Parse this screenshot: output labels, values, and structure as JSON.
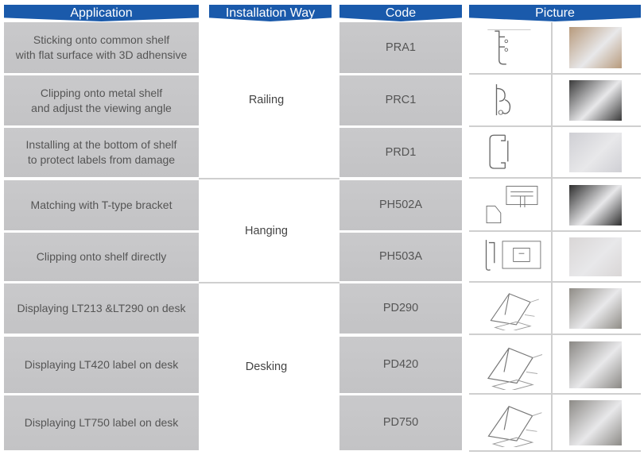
{
  "headers": {
    "application": "Application",
    "installation": "Installation Way",
    "code": "Code",
    "picture": "Picture"
  },
  "colors": {
    "header": "#1a5aab",
    "cell": "#c7c7c9"
  },
  "groups": [
    {
      "label": "Railing"
    },
    {
      "label": "Hanging"
    },
    {
      "label": "Desking"
    }
  ],
  "rows": [
    {
      "application": "Sticking onto common shelf\nwith flat surface with 3D adhensive",
      "code": "PRA1",
      "group": 0,
      "drawing": "rail-profile-drawing",
      "photo_tone": "#b79a7c"
    },
    {
      "application": "Clipping onto metal shelf\nand adjust the viewing angle",
      "code": "PRC1",
      "group": 0,
      "drawing": "clip-profile-drawing",
      "photo_tone": "#3a3a3a"
    },
    {
      "application": "Installing at the bottom of shelf\nto protect labels from damage",
      "code": "PRD1",
      "group": 0,
      "drawing": "bottom-rail-drawing",
      "photo_tone": "#cfcfd4"
    },
    {
      "application": "Matching with T-type bracket",
      "code": "PH502A",
      "group": 1,
      "drawing": "t-bracket-drawing",
      "photo_tone": "#2e2e2e"
    },
    {
      "application": "Clipping onto shelf directly",
      "code": "PH503A",
      "group": 1,
      "drawing": "shelf-clip-drawing",
      "photo_tone": "#d9d6d6"
    },
    {
      "application": "Displaying LT213 &LT290 on desk",
      "code": "PD290",
      "group": 2,
      "drawing": "desk-stand-drawing",
      "photo_tone": "#8f8c86"
    },
    {
      "application": "Displaying LT420 label on desk",
      "code": "PD420",
      "group": 2,
      "drawing": "desk-stand-drawing",
      "photo_tone": "#8a8884"
    },
    {
      "application": "Displaying LT750 label on desk",
      "code": "PD750",
      "group": 2,
      "drawing": "desk-stand-drawing",
      "photo_tone": "#8c8a86"
    }
  ]
}
